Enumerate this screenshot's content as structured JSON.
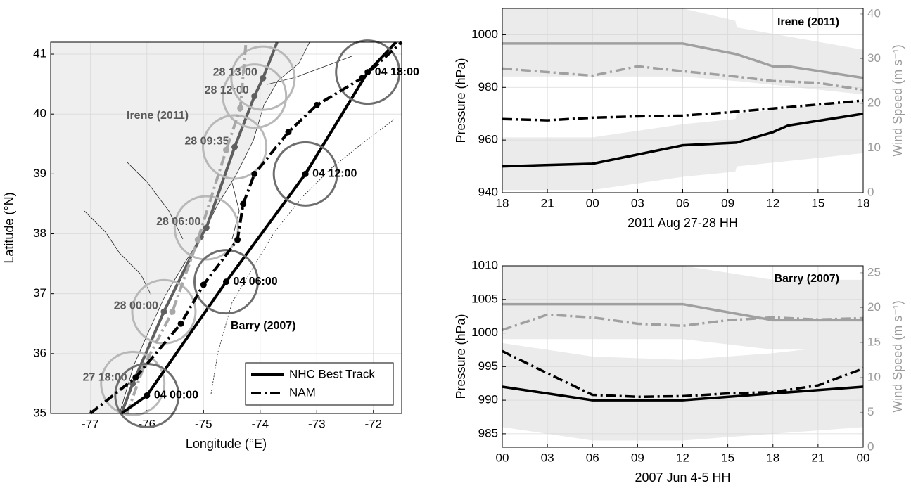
{
  "chart_data": [
    {
      "type": "map",
      "xlabel": "Longitude (°E)",
      "ylabel": "Latitude (°N)",
      "xlim": [
        -77.7,
        -71.5
      ],
      "ylim": [
        35,
        41.2
      ],
      "xticks": [
        -77,
        -76,
        -75,
        -74,
        -73,
        -72
      ],
      "yticks": [
        35,
        36,
        37,
        38,
        39,
        40,
        41
      ],
      "grid": true,
      "legend_loc": "lower right",
      "legend": [
        {
          "label": "NHC Best Track",
          "dash": "solid"
        },
        {
          "label": "NAM",
          "dash": "dashdot"
        }
      ],
      "storms": [
        {
          "name": "Irene (2011)",
          "circle_color": "#b8b8b8",
          "label_side": "left",
          "label_color": "#5a5a5a",
          "tracks": [
            {
              "style": 0,
              "color": "#5f5f5f",
              "x": [
                -76.45,
                -76.25,
                -75.7,
                -75.05,
                -74.95,
                -74.45,
                -74.1,
                -73.95,
                -73.7
              ],
              "y": [
                35,
                35.5,
                36.7,
                37.95,
                38.1,
                39.45,
                40.3,
                40.6,
                41.2
              ],
              "labels": [
                null,
                "27 18:00",
                "28 00:00",
                null,
                "28 06:00",
                "28 09:35",
                "28 12:00",
                "28 13:00",
                null
              ]
            },
            {
              "style": 1,
              "color": "#a8a8a8",
              "x": [
                -76.35,
                -76.05,
                -75.55,
                -75.1,
                -74.6,
                -74.35,
                -74.25
              ],
              "y": [
                35,
                35.8,
                36.7,
                37.9,
                39.4,
                40.1,
                41.2
              ]
            }
          ]
        },
        {
          "name": "Barry (2007)",
          "circle_color": "#6e6e6e",
          "label_side": "right",
          "label_color": "#000000",
          "tracks": [
            {
              "style": 0,
              "color": "#000000",
              "x": [
                -76.45,
                -76.0,
                -74.6,
                -73.2,
                -72.1,
                -71.6
              ],
              "y": [
                35,
                35.3,
                37.2,
                39.0,
                40.7,
                41.2
              ],
              "labels": [
                null,
                "04 00:00",
                "04 06:00",
                "04 12:00",
                "04 18:00",
                null
              ]
            },
            {
              "style": 1,
              "color": "#000000",
              "x": [
                -77,
                -76.2,
                -75.4,
                -75.0,
                -74.4,
                -74.3,
                -74.1,
                -73.5,
                -73.0,
                -72.2,
                -71.5
              ],
              "y": [
                35,
                35.6,
                36.5,
                37.15,
                37.9,
                38.5,
                39.0,
                39.7,
                40.15,
                40.6,
                41.2
              ]
            }
          ]
        }
      ]
    },
    {
      "type": "line",
      "title": "Irene (2011)",
      "xlabel": "2011 Aug 27-28 HH",
      "ylabel": "Pressure (hPa)",
      "y2label": "Wind Speed (m s⁻¹)",
      "xlim": [
        0,
        24
      ],
      "xticks": [
        {
          "value": 0,
          "label": "18"
        },
        {
          "value": 3,
          "label": "21"
        },
        {
          "value": 6,
          "label": "00"
        },
        {
          "value": 9,
          "label": "03"
        },
        {
          "value": 12,
          "label": "06"
        },
        {
          "value": 15,
          "label": "09"
        },
        {
          "value": 18,
          "label": "12"
        },
        {
          "value": 21,
          "label": "15"
        },
        {
          "value": 24,
          "label": "18"
        }
      ],
      "ylim": [
        940,
        1010
      ],
      "yticks": [
        940,
        960,
        980,
        1000
      ],
      "y2lim": [
        0,
        41.25
      ],
      "y2ticks": [
        0,
        10,
        20,
        30,
        40
      ],
      "grid": true,
      "bands": [
        {
          "axis": "y",
          "color": "#ebebeb",
          "x": [
            0,
            6,
            12,
            15.5,
            15.6,
            24
          ],
          "lower": [
            941,
            941,
            946,
            948,
            950,
            955
          ],
          "upper": [
            961,
            961,
            966,
            968,
            970,
            975
          ]
        },
        {
          "axis": "y2",
          "color": "#ebebeb",
          "x": [
            0,
            6,
            12,
            15.5,
            15.6,
            24
          ],
          "lower": [
            26,
            26,
            26,
            25,
            25,
            22
          ],
          "upper": [
            41.25,
            41.25,
            41.25,
            38.5,
            37,
            32
          ]
        }
      ],
      "series": [
        {
          "axis": "y",
          "color": "#000000",
          "dash": "solid",
          "x": [
            0,
            6,
            12,
            15.58,
            18,
            19,
            24
          ],
          "values": [
            950,
            951,
            958,
            959,
            963,
            965.5,
            970
          ]
        },
        {
          "axis": "y",
          "color": "#000000",
          "dash": "dashdot",
          "x": [
            0,
            3,
            6,
            9,
            12,
            15,
            18,
            21,
            24
          ],
          "values": [
            968,
            967.5,
            968.5,
            969,
            969.3,
            970.5,
            972,
            973.5,
            975
          ]
        },
        {
          "axis": "y2",
          "color": "#a0a0a0",
          "dash": "solid",
          "x": [
            0,
            6,
            12,
            15.58,
            18,
            19,
            24
          ],
          "values": [
            33.4,
            33.4,
            33.4,
            31,
            28.3,
            28.3,
            25.7
          ]
        },
        {
          "axis": "y2",
          "color": "#a0a0a0",
          "dash": "dashdot",
          "x": [
            0,
            3,
            6,
            9,
            12,
            15,
            18,
            21,
            24
          ],
          "values": [
            27.8,
            27,
            26.2,
            28.3,
            27.2,
            26.2,
            25,
            24.6,
            23
          ]
        }
      ]
    },
    {
      "type": "line",
      "title": "Barry (2007)",
      "xlabel": "2007 Jun 4-5 HH",
      "ylabel": "Pressure (hPa)",
      "y2label": "Wind Speed (m s⁻¹)",
      "xlim": [
        0,
        24
      ],
      "xticks": [
        {
          "value": 0,
          "label": "00"
        },
        {
          "value": 3,
          "label": "03"
        },
        {
          "value": 6,
          "label": "06"
        },
        {
          "value": 9,
          "label": "09"
        },
        12,
        15,
        18,
        21,
        {
          "value": 24,
          "label": "00"
        }
      ],
      "ylim": [
        983,
        1010
      ],
      "yticks": [
        985,
        990,
        995,
        1000,
        1005,
        1010
      ],
      "y2lim": [
        0,
        26
      ],
      "y2ticks": [
        0,
        5,
        10,
        15,
        20,
        25
      ],
      "grid": true,
      "bands": [
        {
          "axis": "y",
          "color": "#ebebeb",
          "x": [
            0,
            6,
            12,
            18,
            24
          ],
          "lower": [
            986,
            984,
            984,
            985,
            986
          ],
          "upper": [
            998.5,
            996.5,
            996,
            997,
            998.5
          ]
        },
        {
          "axis": "y2",
          "color": "#ebebeb",
          "x": [
            0,
            12,
            18,
            24
          ],
          "lower": [
            15.5,
            15.5,
            14,
            14
          ],
          "upper": [
            26,
            26,
            24,
            24
          ]
        }
      ],
      "series": [
        {
          "axis": "y",
          "color": "#000000",
          "dash": "solid",
          "x": [
            0,
            6,
            12,
            18,
            24
          ],
          "values": [
            992,
            990,
            990,
            991,
            992
          ]
        },
        {
          "axis": "y",
          "color": "#000000",
          "dash": "dashdot",
          "x": [
            0,
            3,
            6,
            9,
            12,
            15,
            18,
            21,
            24
          ],
          "values": [
            997.3,
            994,
            990.8,
            990.5,
            990.6,
            991,
            991.2,
            992.2,
            994.7
          ]
        },
        {
          "axis": "y2",
          "color": "#a0a0a0",
          "dash": "solid",
          "x": [
            0,
            6,
            12,
            18,
            24
          ],
          "values": [
            20.5,
            20.5,
            20.5,
            18.2,
            18.2
          ]
        },
        {
          "axis": "y2",
          "color": "#a0a0a0",
          "dash": "dashdot",
          "x": [
            0,
            3,
            6,
            9,
            12,
            15,
            18,
            21,
            24
          ],
          "values": [
            16.8,
            19,
            18.6,
            17.7,
            17.4,
            18.2,
            18.6,
            18.3,
            18.5
          ]
        }
      ]
    }
  ]
}
